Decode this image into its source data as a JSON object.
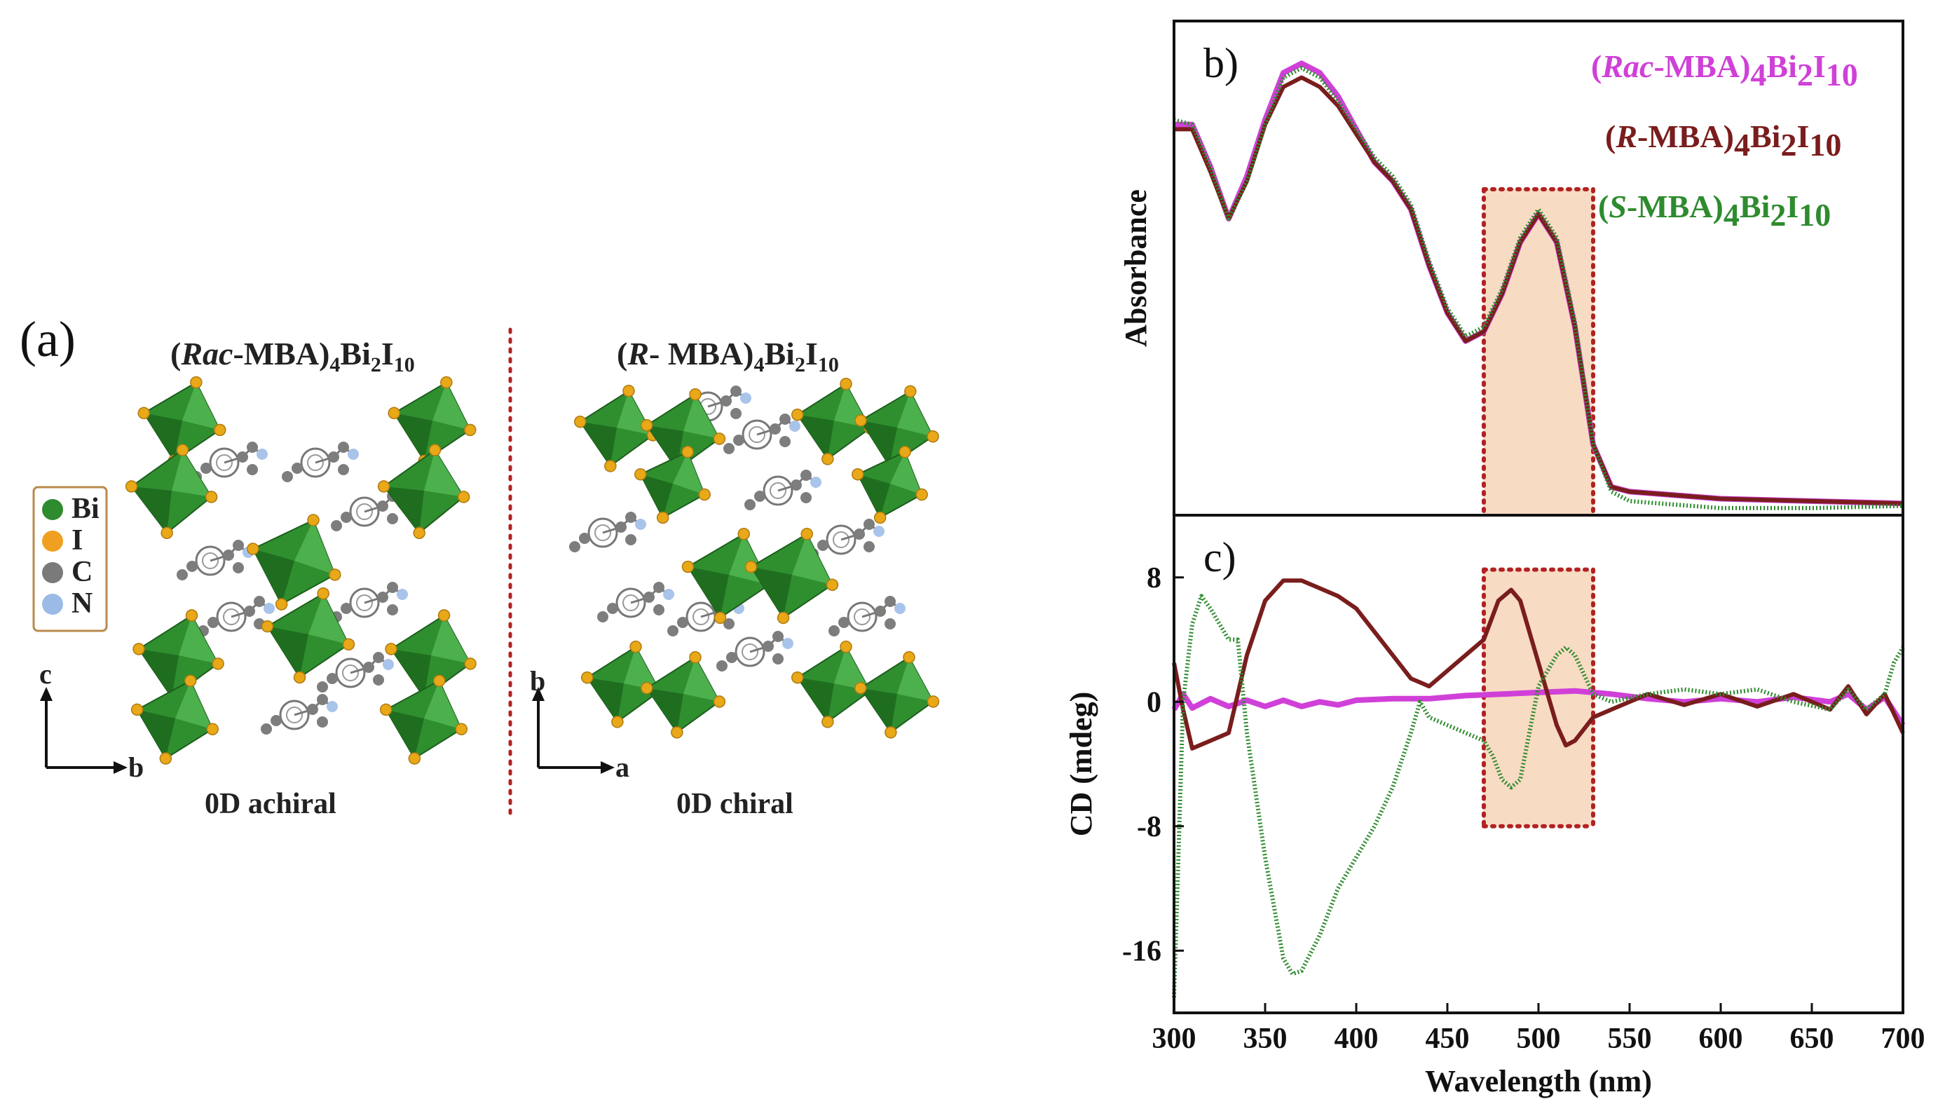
{
  "panel_a": {
    "label": "(a)",
    "left_title": {
      "open": "(",
      "ital": "Rac",
      "rest": "-MBA)",
      "s1": "4",
      "mid": "Bi",
      "s2": "2",
      "end": "I",
      "s3": "10"
    },
    "right_title": {
      "open": "(",
      "ital": "R",
      "rest": "- MBA)",
      "s1": "4",
      "mid": "Bi",
      "s2": "2",
      "end": "I",
      "s3": "10"
    },
    "left_caption": "0D achiral",
    "right_caption": "0D chiral",
    "legend": [
      {
        "name": "Bi",
        "color": "#2e8b2e"
      },
      {
        "name": "I",
        "color": "#f0a020"
      },
      {
        "name": "C",
        "color": "#7a7a7a"
      },
      {
        "name": "N",
        "color": "#9bbbe6"
      }
    ],
    "left_axes": {
      "up": "c",
      "right": "b"
    },
    "right_axes": {
      "up": "b",
      "right": "a"
    }
  },
  "chart_data": [
    {
      "type": "line",
      "panel_label": "b)",
      "title": "",
      "xlabel": "Wavelength (nm)",
      "ylabel": "Absorbance",
      "xlim": [
        300,
        700
      ],
      "ylim": [
        0,
        1.05
      ],
      "show_y_ticks": false,
      "highlight_range": [
        470,
        530
      ],
      "series": [
        {
          "name": "Rac-MBA",
          "label": {
            "open": "(",
            "ital": "Rac",
            "rest": "-MBA)",
            "s1": "4",
            "mid": "Bi",
            "s2": "2",
            "end": "I",
            "s3": "10"
          },
          "color": "#d040d8",
          "points": [
            [
              300,
              0.83
            ],
            [
              310,
              0.83
            ],
            [
              320,
              0.74
            ],
            [
              330,
              0.63
            ],
            [
              340,
              0.72
            ],
            [
              350,
              0.84
            ],
            [
              360,
              0.94
            ],
            [
              370,
              0.96
            ],
            [
              380,
              0.94
            ],
            [
              390,
              0.89
            ],
            [
              400,
              0.82
            ],
            [
              410,
              0.75
            ],
            [
              420,
              0.71
            ],
            [
              430,
              0.65
            ],
            [
              440,
              0.53
            ],
            [
              450,
              0.43
            ],
            [
              460,
              0.37
            ],
            [
              470,
              0.39
            ],
            [
              480,
              0.47
            ],
            [
              490,
              0.58
            ],
            [
              500,
              0.64
            ],
            [
              510,
              0.58
            ],
            [
              520,
              0.4
            ],
            [
              530,
              0.15
            ],
            [
              540,
              0.06
            ],
            [
              550,
              0.05
            ],
            [
              600,
              0.035
            ],
            [
              650,
              0.03
            ],
            [
              700,
              0.025
            ]
          ]
        },
        {
          "name": "R-MBA",
          "label": {
            "open": "(",
            "ital": "R",
            "rest": "-MBA)",
            "s1": "4",
            "mid": "Bi",
            "s2": "2",
            "end": "I",
            "s3": "10"
          },
          "color": "#7a1d1d",
          "points": [
            [
              300,
              0.82
            ],
            [
              310,
              0.82
            ],
            [
              320,
              0.73
            ],
            [
              330,
              0.63
            ],
            [
              340,
              0.71
            ],
            [
              350,
              0.83
            ],
            [
              360,
              0.91
            ],
            [
              370,
              0.93
            ],
            [
              380,
              0.91
            ],
            [
              390,
              0.87
            ],
            [
              400,
              0.81
            ],
            [
              410,
              0.75
            ],
            [
              420,
              0.71
            ],
            [
              430,
              0.65
            ],
            [
              440,
              0.53
            ],
            [
              450,
              0.43
            ],
            [
              460,
              0.37
            ],
            [
              470,
              0.39
            ],
            [
              480,
              0.47
            ],
            [
              490,
              0.58
            ],
            [
              500,
              0.64
            ],
            [
              510,
              0.58
            ],
            [
              520,
              0.4
            ],
            [
              530,
              0.15
            ],
            [
              540,
              0.06
            ],
            [
              550,
              0.05
            ],
            [
              600,
              0.035
            ],
            [
              650,
              0.03
            ],
            [
              700,
              0.025
            ]
          ]
        },
        {
          "name": "S-MBA",
          "label": {
            "open": "(",
            "ital": "S",
            "rest": "-MBA)",
            "s1": "4",
            "mid": "Bi",
            "s2": "2",
            "end": "I",
            "s3": "10"
          },
          "color": "#2e8b2e",
          "points": [
            [
              300,
              0.84
            ],
            [
              310,
              0.83
            ],
            [
              320,
              0.74
            ],
            [
              330,
              0.63
            ],
            [
              340,
              0.71
            ],
            [
              350,
              0.83
            ],
            [
              360,
              0.93
            ],
            [
              370,
              0.95
            ],
            [
              380,
              0.93
            ],
            [
              390,
              0.88
            ],
            [
              400,
              0.82
            ],
            [
              410,
              0.76
            ],
            [
              420,
              0.72
            ],
            [
              430,
              0.66
            ],
            [
              440,
              0.54
            ],
            [
              450,
              0.44
            ],
            [
              460,
              0.38
            ],
            [
              470,
              0.4
            ],
            [
              480,
              0.48
            ],
            [
              490,
              0.59
            ],
            [
              500,
              0.65
            ],
            [
              510,
              0.59
            ],
            [
              520,
              0.41
            ],
            [
              530,
              0.15
            ],
            [
              540,
              0.05
            ],
            [
              550,
              0.03
            ],
            [
              600,
              0.015
            ],
            [
              650,
              0.015
            ],
            [
              700,
              0.02
            ]
          ]
        }
      ]
    },
    {
      "type": "line",
      "panel_label": "c)",
      "title": "",
      "xlabel": "Wavelength (nm)",
      "ylabel": "CD (mdeg)",
      "xlim": [
        300,
        700
      ],
      "ylim": [
        -20,
        12
      ],
      "y_ticks": [
        8,
        0,
        -8,
        -16
      ],
      "x_ticks": [
        300,
        350,
        400,
        450,
        500,
        550,
        600,
        650,
        700
      ],
      "highlight_range": [
        470,
        530
      ],
      "highlight_y": [
        -8,
        8.5
      ],
      "series": [
        {
          "name": "Rac-MBA",
          "color": "#d040d8",
          "points": [
            [
              300,
              -0.5
            ],
            [
              305,
              0.5
            ],
            [
              310,
              -0.4
            ],
            [
              320,
              0.2
            ],
            [
              330,
              -0.3
            ],
            [
              340,
              0.1
            ],
            [
              350,
              -0.3
            ],
            [
              360,
              0.1
            ],
            [
              370,
              -0.3
            ],
            [
              380,
              0.0
            ],
            [
              390,
              -0.2
            ],
            [
              400,
              0.1
            ],
            [
              420,
              0.2
            ],
            [
              440,
              0.2
            ],
            [
              460,
              0.4
            ],
            [
              480,
              0.5
            ],
            [
              500,
              0.6
            ],
            [
              520,
              0.7
            ],
            [
              540,
              0.5
            ],
            [
              560,
              0.2
            ],
            [
              580,
              0.0
            ],
            [
              600,
              0.2
            ],
            [
              620,
              0.0
            ],
            [
              640,
              0.3
            ],
            [
              660,
              0.0
            ],
            [
              670,
              0.5
            ],
            [
              680,
              -0.5
            ],
            [
              690,
              0.3
            ],
            [
              700,
              -1.5
            ]
          ]
        },
        {
          "name": "R-MBA",
          "color": "#7a1d1d",
          "points": [
            [
              300,
              2.5
            ],
            [
              305,
              -0.5
            ],
            [
              310,
              -3.0
            ],
            [
              320,
              -2.5
            ],
            [
              330,
              -2.0
            ],
            [
              340,
              3.0
            ],
            [
              350,
              6.5
            ],
            [
              360,
              7.8
            ],
            [
              370,
              7.8
            ],
            [
              380,
              7.3
            ],
            [
              390,
              6.8
            ],
            [
              400,
              6.0
            ],
            [
              410,
              4.5
            ],
            [
              420,
              3.0
            ],
            [
              430,
              1.5
            ],
            [
              440,
              1.0
            ],
            [
              450,
              2.0
            ],
            [
              460,
              3.0
            ],
            [
              470,
              4.0
            ],
            [
              478,
              6.5
            ],
            [
              485,
              7.2
            ],
            [
              490,
              6.5
            ],
            [
              500,
              2.5
            ],
            [
              510,
              -1.5
            ],
            [
              515,
              -2.8
            ],
            [
              520,
              -2.5
            ],
            [
              530,
              -1.0
            ],
            [
              540,
              -0.5
            ],
            [
              560,
              0.5
            ],
            [
              580,
              -0.2
            ],
            [
              600,
              0.5
            ],
            [
              620,
              -0.3
            ],
            [
              640,
              0.5
            ],
            [
              660,
              -0.5
            ],
            [
              670,
              1.0
            ],
            [
              680,
              -0.8
            ],
            [
              690,
              0.5
            ],
            [
              700,
              -2.0
            ]
          ]
        },
        {
          "name": "S-MBA",
          "color": "#2e8b2e",
          "points": [
            [
              300,
              -19
            ],
            [
              305,
              0
            ],
            [
              310,
              5
            ],
            [
              315,
              6.8
            ],
            [
              320,
              6.0
            ],
            [
              330,
              4.0
            ],
            [
              335,
              4.0
            ],
            [
              340,
              -2.0
            ],
            [
              350,
              -10.0
            ],
            [
              360,
              -16.5
            ],
            [
              365,
              -17.5
            ],
            [
              370,
              -17.3
            ],
            [
              380,
              -15.0
            ],
            [
              390,
              -12.0
            ],
            [
              400,
              -10.0
            ],
            [
              410,
              -8.0
            ],
            [
              420,
              -5.5
            ],
            [
              430,
              -2.0
            ],
            [
              435,
              0.0
            ],
            [
              440,
              -1.0
            ],
            [
              450,
              -1.5
            ],
            [
              460,
              -2.0
            ],
            [
              470,
              -2.5
            ],
            [
              475,
              -3.5
            ],
            [
              480,
              -5.0
            ],
            [
              485,
              -5.5
            ],
            [
              490,
              -5.0
            ],
            [
              495,
              -2.0
            ],
            [
              500,
              1.0
            ],
            [
              510,
              3.0
            ],
            [
              515,
              3.5
            ],
            [
              520,
              3.0
            ],
            [
              530,
              0.5
            ],
            [
              540,
              0.0
            ],
            [
              560,
              0.5
            ],
            [
              580,
              0.8
            ],
            [
              600,
              0.5
            ],
            [
              620,
              0.8
            ],
            [
              640,
              0.0
            ],
            [
              660,
              -0.5
            ],
            [
              670,
              0.8
            ],
            [
              680,
              -0.5
            ],
            [
              690,
              0.5
            ],
            [
              695,
              2.5
            ],
            [
              700,
              3.5
            ]
          ]
        }
      ]
    }
  ]
}
